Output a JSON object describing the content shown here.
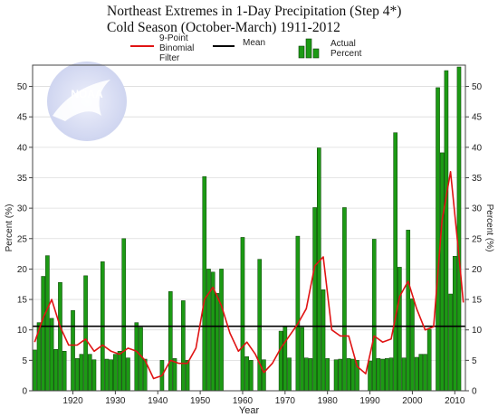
{
  "chart_data": {
    "type": "bar",
    "title": "Northeast Extremes in 1-Day Precipitation (Step 4*)",
    "subtitle": "Cold Season (October-March) 1911-2012",
    "xlabel": "Year",
    "ylabel": "Percent (%)",
    "ylabel_right": "Percent (%)",
    "xlim": [
      1911,
      2012
    ],
    "ylim": [
      0,
      53.5
    ],
    "x_ticks": [
      1920,
      1930,
      1940,
      1950,
      1960,
      1970,
      1980,
      1990,
      2000,
      2010
    ],
    "y_ticks": [
      0,
      5,
      10,
      15,
      20,
      25,
      30,
      35,
      40,
      45,
      50
    ],
    "grid": true,
    "legend_position": "top",
    "logo_text": "NOAA",
    "colors": {
      "bars": "#1c9a14",
      "bar_edge": "#0b3d06",
      "filter": "#e01414",
      "mean": "#000000"
    },
    "mean": 10.6,
    "series": [
      {
        "name": "Actual Percent",
        "kind": "bar",
        "x": [
          1911,
          1912,
          1913,
          1914,
          1915,
          1916,
          1917,
          1918,
          1919,
          1920,
          1921,
          1922,
          1923,
          1924,
          1925,
          1926,
          1927,
          1928,
          1929,
          1930,
          1931,
          1932,
          1933,
          1934,
          1935,
          1936,
          1937,
          1938,
          1939,
          1940,
          1941,
          1942,
          1943,
          1944,
          1945,
          1946,
          1947,
          1948,
          1949,
          1950,
          1951,
          1952,
          1953,
          1954,
          1955,
          1956,
          1957,
          1958,
          1959,
          1960,
          1961,
          1962,
          1963,
          1964,
          1965,
          1966,
          1967,
          1968,
          1969,
          1970,
          1971,
          1972,
          1973,
          1974,
          1975,
          1976,
          1977,
          1978,
          1979,
          1980,
          1981,
          1982,
          1983,
          1984,
          1985,
          1986,
          1987,
          1988,
          1989,
          1990,
          1991,
          1992,
          1993,
          1994,
          1995,
          1996,
          1997,
          1998,
          1999,
          2000,
          2001,
          2002,
          2003,
          2004,
          2005,
          2006,
          2007,
          2008,
          2009,
          2010,
          2011,
          2012
        ],
        "values": [
          6.7,
          11.2,
          18.8,
          22.2,
          11.9,
          6.8,
          17.8,
          6.5,
          0,
          13.2,
          5.3,
          6.0,
          18.9,
          6.0,
          5.1,
          0,
          21.2,
          5.2,
          5.1,
          6.0,
          6.5,
          25.0,
          5.4,
          0,
          11.2,
          10.4,
          5.2,
          0,
          0,
          0,
          5.0,
          0,
          16.3,
          5.3,
          0,
          14.8,
          5.0,
          0,
          0,
          0,
          35.2,
          20.0,
          19.5,
          16.0,
          20.0,
          0,
          0,
          0,
          0,
          25.2,
          5.6,
          5.0,
          0,
          21.6,
          5.1,
          0,
          0,
          0,
          9.8,
          10.6,
          5.4,
          0,
          25.4,
          10.4,
          5.4,
          5.3,
          30.1,
          39.9,
          16.6,
          5.3,
          0,
          5.1,
          5.2,
          30.1,
          5.3,
          5.2,
          5.0,
          0,
          0,
          4.9,
          24.9,
          5.3,
          5.2,
          5.3,
          5.4,
          42.4,
          20.3,
          5.4,
          26.4,
          15.1,
          5.5,
          6.0,
          6.0,
          10.1,
          0,
          49.8,
          39.1,
          52.6,
          15.9,
          22.1,
          53.2,
          0
        ]
      },
      {
        "name": "9-Point Binomial Filter",
        "kind": "line",
        "x": [
          1911,
          1913,
          1915,
          1917,
          1919,
          1921,
          1923,
          1925,
          1927,
          1929,
          1931,
          1933,
          1935,
          1937,
          1939,
          1941,
          1943,
          1945,
          1947,
          1949,
          1951,
          1953,
          1955,
          1957,
          1959,
          1961,
          1963,
          1965,
          1967,
          1969,
          1971,
          1973,
          1975,
          1977,
          1979,
          1981,
          1983,
          1985,
          1987,
          1989,
          1991,
          1993,
          1995,
          1997,
          1999,
          2001,
          2003,
          2005,
          2007,
          2009,
          2011,
          2012
        ],
        "values": [
          8.0,
          12.0,
          15.0,
          10.5,
          7.5,
          7.5,
          8.5,
          6.5,
          7.5,
          6.5,
          6.0,
          7.0,
          6.5,
          5.0,
          2.0,
          2.5,
          5.0,
          4.5,
          4.5,
          7.0,
          15.0,
          17.0,
          14.0,
          9.5,
          6.5,
          8.0,
          6.0,
          3.0,
          4.5,
          7.0,
          9.0,
          11.0,
          13.5,
          20.5,
          22.0,
          10.0,
          9.0,
          9.0,
          4.0,
          2.8,
          9.0,
          8.0,
          8.5,
          15.5,
          18.0,
          13.5,
          10.0,
          10.5,
          28.0,
          36.0,
          22.0,
          14.5
        ]
      },
      {
        "name": "Mean",
        "kind": "hline",
        "value": 10.6
      }
    ],
    "legend": [
      {
        "label": "9-Point Binomial Filter",
        "label_lines": [
          "9-Point",
          "Binomial",
          "Filter"
        ]
      },
      {
        "label": "Mean"
      },
      {
        "label": "Actual Percent",
        "label_lines": [
          "Actual",
          "Percent"
        ]
      }
    ]
  }
}
